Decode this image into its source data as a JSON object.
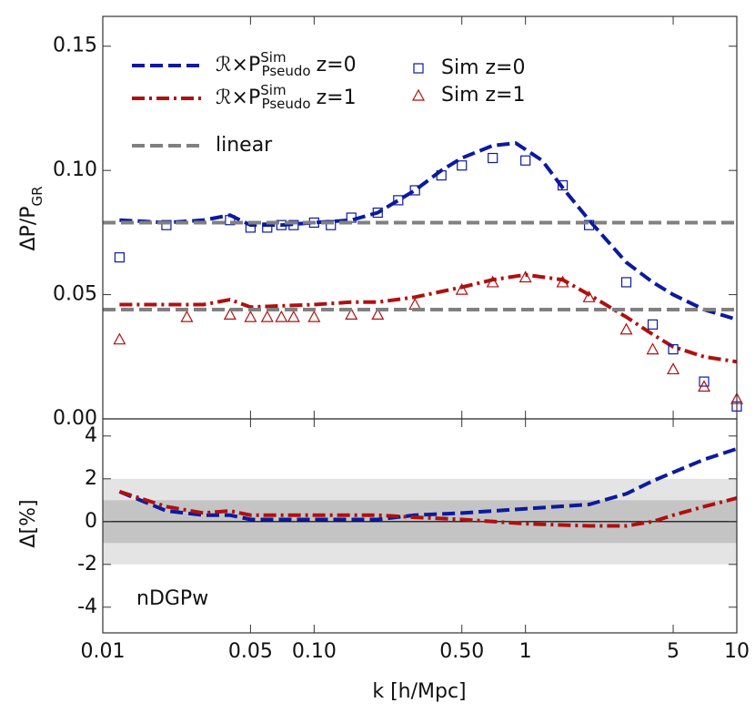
{
  "chart_data": [
    {
      "type": "line",
      "ylabel": "ΔP/P",
      "ylabel_sub": "GR",
      "xlog": true,
      "xlim": [
        0.01,
        10
      ],
      "ylim": [
        0,
        0.162
      ],
      "yticks": [
        {
          "value": 0,
          "label": "0.00"
        },
        0.05,
        {
          "value": 0.1,
          "label": "0.10"
        },
        0.15
      ],
      "series": [
        {
          "name": "ℛ×P",
          "name_sup": "Sim",
          "name_sub": "Pseudo",
          "name_suffix": "z=0",
          "color": "#0c1a9e",
          "style": "dashed",
          "x": [
            0.012,
            0.02,
            0.03,
            0.04,
            0.05,
            0.07,
            0.1,
            0.15,
            0.2,
            0.3,
            0.4,
            0.5,
            0.7,
            0.9,
            1.2,
            1.5,
            2,
            3,
            4,
            5,
            7,
            10
          ],
          "values": [
            0.08,
            0.079,
            0.08,
            0.082,
            0.078,
            0.078,
            0.079,
            0.08,
            0.083,
            0.092,
            0.1,
            0.105,
            0.11,
            0.111,
            0.104,
            0.093,
            0.08,
            0.063,
            0.055,
            0.05,
            0.044,
            0.04
          ]
        },
        {
          "name": "ℛ×P",
          "name_sup": "Sim",
          "name_sub": "Pseudo",
          "name_suffix": "z=1",
          "color": "#b01010",
          "style": "dashdot",
          "x": [
            0.012,
            0.03,
            0.04,
            0.05,
            0.1,
            0.15,
            0.2,
            0.3,
            0.5,
            0.7,
            1,
            1.5,
            2,
            3,
            4,
            5,
            7,
            10
          ],
          "values": [
            0.046,
            0.046,
            0.048,
            0.045,
            0.046,
            0.047,
            0.047,
            0.049,
            0.053,
            0.056,
            0.058,
            0.056,
            0.05,
            0.041,
            0.034,
            0.029,
            0.025,
            0.023
          ]
        },
        {
          "name": "Sim z=0",
          "color": "#0c1a9e",
          "style": "square",
          "x": [
            0.012,
            0.02,
            0.04,
            0.05,
            0.06,
            0.07,
            0.08,
            0.1,
            0.12,
            0.15,
            0.2,
            0.25,
            0.3,
            0.4,
            0.5,
            0.7,
            1,
            1.5,
            2,
            3,
            4,
            5,
            7,
            10
          ],
          "values": [
            0.065,
            0.078,
            0.08,
            0.077,
            0.077,
            0.078,
            0.078,
            0.079,
            0.078,
            0.081,
            0.083,
            0.088,
            0.092,
            0.098,
            0.102,
            0.105,
            0.104,
            0.094,
            0.078,
            0.055,
            0.038,
            0.028,
            0.015,
            0.005
          ]
        },
        {
          "name": "Sim z=1",
          "color": "#b01010",
          "style": "triangle",
          "x": [
            0.012,
            0.025,
            0.04,
            0.05,
            0.06,
            0.07,
            0.08,
            0.1,
            0.15,
            0.2,
            0.3,
            0.5,
            0.7,
            1,
            1.5,
            2,
            3,
            4,
            5,
            7,
            10
          ],
          "values": [
            0.032,
            0.041,
            0.042,
            0.041,
            0.041,
            0.041,
            0.041,
            0.041,
            0.042,
            0.042,
            0.046,
            0.052,
            0.055,
            0.057,
            0.055,
            0.049,
            0.036,
            0.028,
            0.02,
            0.013,
            0.008
          ]
        },
        {
          "name": "linear",
          "color": "#808080",
          "style": "dashed",
          "x": [
            0.01,
            10
          ],
          "values": [
            0.079,
            0.079
          ]
        },
        {
          "color": "#808080",
          "style": "dashed",
          "x": [
            0.01,
            10
          ],
          "values": [
            0.044,
            0.044
          ]
        }
      ]
    },
    {
      "type": "line",
      "ylabel": "Δ[%]",
      "xlabel": "k [h/Mpc]",
      "annotation": "nDGPw",
      "xlog": true,
      "xlim": [
        0.01,
        10
      ],
      "ylim": [
        -5.2,
        4.8
      ],
      "yticks": [
        -4,
        -2,
        0,
        2,
        4
      ],
      "xticks": [
        0.01,
        0.05,
        {
          "value": 0.1,
          "label": "0.10"
        },
        {
          "value": 0.5,
          "label": "0.50"
        },
        1,
        5,
        10
      ],
      "bands": [
        [
          -2,
          2
        ],
        [
          -1,
          1
        ]
      ],
      "band_colors": [
        "#e4e4e4",
        "#c4c4c4"
      ],
      "hline": 0,
      "series": [
        {
          "color": "#0c1a9e",
          "style": "dashed",
          "x": [
            0.012,
            0.02,
            0.03,
            0.04,
            0.05,
            0.1,
            0.2,
            0.3,
            0.5,
            1,
            2,
            3,
            4,
            5,
            7,
            10
          ],
          "values": [
            1.4,
            0.5,
            0.3,
            0.3,
            0.1,
            0.1,
            0.1,
            0.3,
            0.4,
            0.6,
            0.8,
            1.3,
            1.9,
            2.3,
            2.9,
            3.4
          ]
        },
        {
          "color": "#b01010",
          "style": "dashdot",
          "x": [
            0.012,
            0.02,
            0.03,
            0.04,
            0.05,
            0.1,
            0.2,
            0.3,
            0.5,
            1,
            2,
            3,
            4,
            5,
            7,
            10
          ],
          "values": [
            1.4,
            0.7,
            0.4,
            0.5,
            0.3,
            0.3,
            0.3,
            0.2,
            0.1,
            -0.1,
            -0.2,
            -0.2,
            0,
            0.3,
            0.7,
            1.1
          ]
        }
      ]
    }
  ]
}
